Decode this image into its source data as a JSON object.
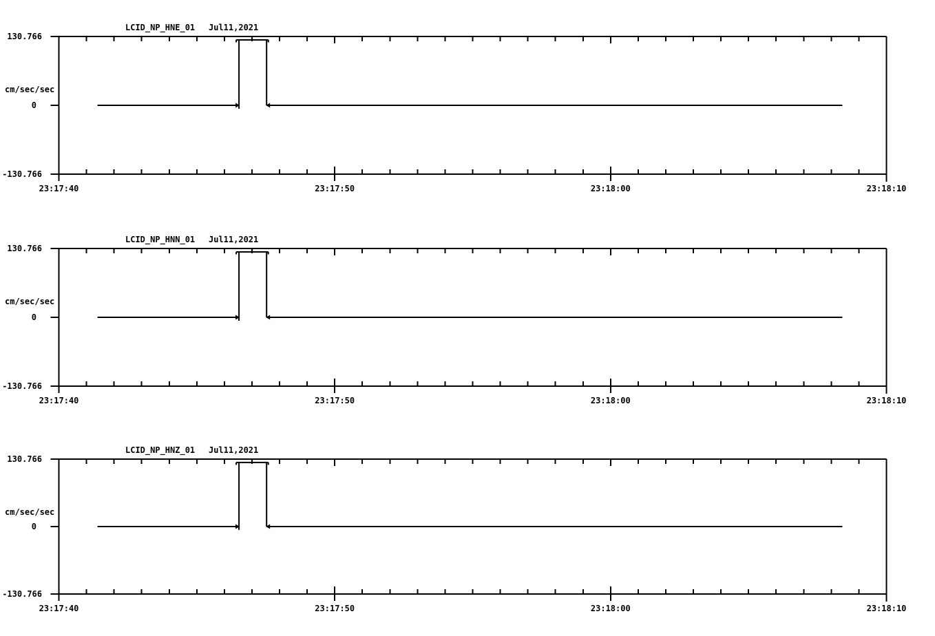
{
  "figure": {
    "background": "#ffffff",
    "ink": "#000000",
    "unit_label": "cm/sec/sec",
    "time_axis_start": "23:17:40",
    "time_axis_end": "23:18:10"
  },
  "chart_data": [
    {
      "type": "line",
      "title": "LCID_NP_HNE_01   Jul11,2021",
      "station_channel": "LCID_NP_HNE_01",
      "date_label": "Jul11,2021",
      "ylabel": "cm/sec/sec",
      "ylim": [
        -130.766,
        130.766
      ],
      "ytick_labels": [
        "130.766",
        "0",
        "-130.766"
      ],
      "ytick_values": [
        130.766,
        0,
        -130.766
      ],
      "xtick_labels": [
        "23:17:40",
        "23:17:50",
        "23:18:00",
        "23:18:10"
      ],
      "x_span_seconds": 30,
      "x_major_tick_seconds": 10,
      "x_minor_tick_seconds": 1,
      "grid": false,
      "legend": false,
      "waveform_t_v": [
        [
          1.4,
          0
        ],
        [
          6.53,
          0
        ],
        [
          6.53,
          -6.5
        ],
        [
          6.53,
          124.2
        ],
        [
          7.53,
          124.2
        ],
        [
          7.53,
          0
        ],
        [
          28.4,
          0
        ]
      ],
      "pulse_amplitude_cm_s2": 124.2,
      "pulse_duration_s": 1.0
    },
    {
      "type": "line",
      "title": "LCID_NP_HNN_01   Jul11,2021",
      "station_channel": "LCID_NP_HNN_01",
      "date_label": "Jul11,2021",
      "ylabel": "cm/sec/sec",
      "ylim": [
        -130.766,
        130.766
      ],
      "ytick_labels": [
        "130.766",
        "0",
        "-130.766"
      ],
      "ytick_values": [
        130.766,
        0,
        -130.766
      ],
      "xtick_labels": [
        "23:17:40",
        "23:17:50",
        "23:18:00",
        "23:18:10"
      ],
      "x_span_seconds": 30,
      "x_major_tick_seconds": 10,
      "x_minor_tick_seconds": 1,
      "grid": false,
      "legend": false,
      "waveform_t_v": [
        [
          1.4,
          0
        ],
        [
          6.53,
          0
        ],
        [
          6.53,
          -6.5
        ],
        [
          6.53,
          124.2
        ],
        [
          7.53,
          124.2
        ],
        [
          7.53,
          0
        ],
        [
          28.4,
          0
        ]
      ],
      "pulse_amplitude_cm_s2": 124.2,
      "pulse_duration_s": 1.0
    },
    {
      "type": "line",
      "title": "LCID_NP_HNZ_01   Jul11,2021",
      "station_channel": "LCID_NP_HNZ_01",
      "date_label": "Jul11,2021",
      "ylabel": "cm/sec/sec",
      "ylim": [
        -130.766,
        130.766
      ],
      "ytick_labels": [
        "130.766",
        "0",
        "-130.766"
      ],
      "ytick_values": [
        130.766,
        0,
        -130.766
      ],
      "xtick_labels": [
        "23:17:40",
        "23:17:50",
        "23:18:00",
        "23:18:10"
      ],
      "x_span_seconds": 30,
      "x_major_tick_seconds": 10,
      "x_minor_tick_seconds": 1,
      "grid": false,
      "legend": false,
      "waveform_t_v": [
        [
          1.4,
          0
        ],
        [
          6.53,
          0
        ],
        [
          6.53,
          -6.5
        ],
        [
          6.53,
          124.2
        ],
        [
          7.53,
          124.2
        ],
        [
          7.53,
          0
        ],
        [
          28.4,
          0
        ]
      ],
      "pulse_amplitude_cm_s2": 124.2,
      "pulse_duration_s": 1.0
    }
  ]
}
